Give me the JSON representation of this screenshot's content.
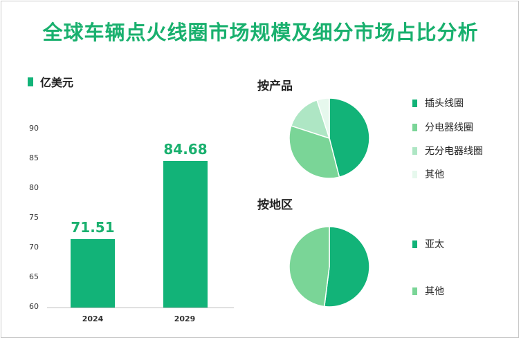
{
  "title": "全球车辆点火线圈市场规模及细分市场占比分析",
  "chart_data": [
    {
      "type": "bar",
      "unit_label": "亿美元",
      "categories": [
        "2024",
        "2029"
      ],
      "values": [
        71.51,
        84.68
      ],
      "value_labels": [
        "71.51",
        "84.68"
      ],
      "yticks": [
        "90",
        "85",
        "80",
        "75",
        "70",
        "65",
        "60"
      ],
      "ylim": [
        60,
        90
      ],
      "color": "#12b378"
    },
    {
      "type": "pie",
      "title": "按产品",
      "slices": [
        {
          "label": "插头线圈",
          "value": 46,
          "color": "#12b378"
        },
        {
          "label": "分电器线圈",
          "value": 34,
          "color": "#7ad597"
        },
        {
          "label": "无分电器线圈",
          "value": 15,
          "color": "#aee6c4"
        },
        {
          "label": "其他",
          "value": 5,
          "color": "#e6f8ed"
        }
      ]
    },
    {
      "type": "pie",
      "title": "按地区",
      "slices": [
        {
          "label": "亚太",
          "value": 52,
          "color": "#12b378"
        },
        {
          "label": "其他",
          "value": 48,
          "color": "#7ad597"
        }
      ]
    }
  ]
}
